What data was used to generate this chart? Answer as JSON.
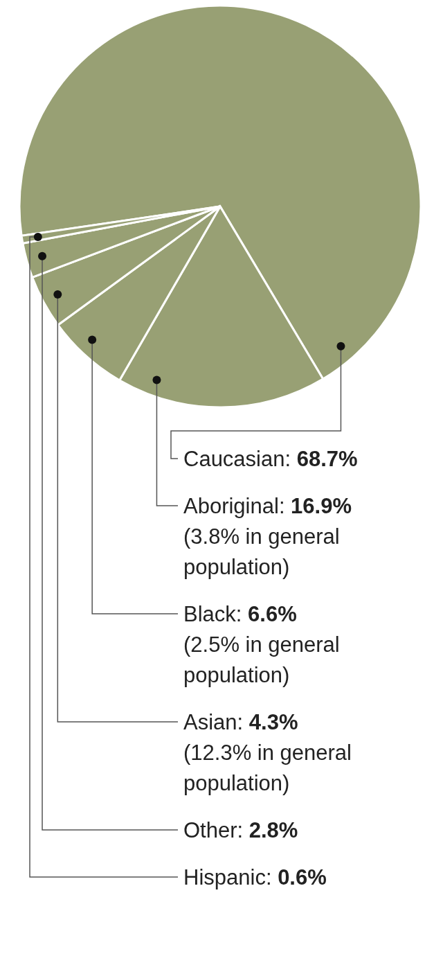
{
  "chart_data": {
    "type": "pie",
    "categories": [
      "Caucasian",
      "Aboriginal",
      "Black",
      "Asian",
      "Other",
      "Hispanic"
    ],
    "values": [
      68.7,
      16.9,
      6.6,
      4.3,
      2.8,
      0.6
    ],
    "value_labels": [
      ": 68.7%",
      ": 16.9%",
      ": 6.6%",
      ": 4.3%",
      ": 2.8%",
      ": 0.6%"
    ],
    "colors": [
      "#98a074",
      "#98a074",
      "#98a074",
      "#98a074",
      "#98a074",
      "#98a074"
    ],
    "annotations": [
      {
        "text": "(3.8% in general population)",
        "x": "Aboriginal"
      },
      {
        "text": "(2.5% in general population)",
        "x": "Black"
      },
      {
        "text": "(12.3% in general population)",
        "x": "Asian"
      }
    ],
    "legend": false
  }
}
